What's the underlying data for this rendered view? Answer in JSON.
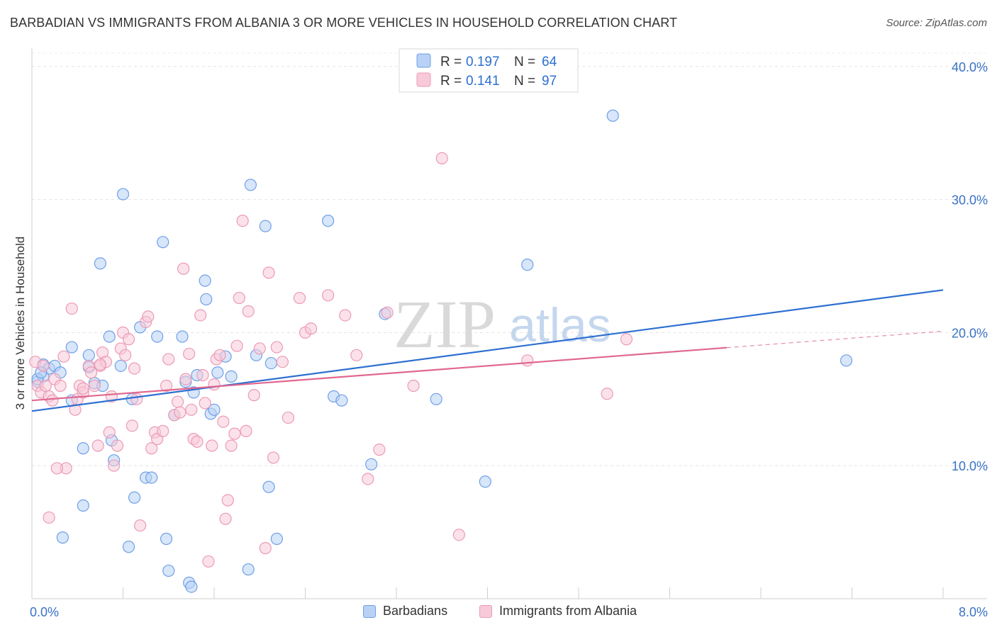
{
  "title": "BARBADIAN VS IMMIGRANTS FROM ALBANIA 3 OR MORE VEHICLES IN HOUSEHOLD CORRELATION CHART",
  "source": "Source: ZipAtlas.com",
  "watermark": {
    "zip": "ZIP",
    "atlas": "atlas"
  },
  "chart_data": {
    "type": "scatter",
    "ylabel": "3 or more Vehicles in Household",
    "xlim": [
      0,
      8
    ],
    "ylim": [
      0,
      41
    ],
    "x_tick_labels": [
      "0.0%",
      "8.0%"
    ],
    "y_ticks": [
      10,
      20,
      30,
      40
    ],
    "y_tick_labels": [
      "10.0%",
      "20.0%",
      "30.0%",
      "40.0%"
    ],
    "grid": true,
    "legend_top": {
      "rows": [
        {
          "r_label": "R =",
          "r_value": "0.197",
          "n_label": "N =",
          "n_value": "64"
        },
        {
          "r_label": "R =",
          "r_value": "0.141",
          "n_label": "N =",
          "n_value": "97"
        }
      ]
    },
    "series": [
      {
        "name": "Barbadians",
        "color": "#6fa0e6",
        "fill": "#b8d1f5",
        "line_color": "#2d6fd1",
        "trend": {
          "x0": 0,
          "y0": 14.1,
          "x1": 8,
          "y1": 23.2,
          "solid_until": 8
        },
        "points": [
          [
            0.05,
            16.3
          ],
          [
            0.1,
            17.6
          ],
          [
            0.1,
            16.7
          ],
          [
            0.15,
            17.3
          ],
          [
            0.2,
            17.5
          ],
          [
            0.25,
            17.0
          ],
          [
            0.35,
            14.9
          ],
          [
            0.35,
            18.9
          ],
          [
            0.45,
            11.3
          ],
          [
            0.45,
            7.0
          ],
          [
            0.5,
            18.3
          ],
          [
            0.5,
            17.4
          ],
          [
            0.55,
            16.2
          ],
          [
            0.6,
            25.2
          ],
          [
            0.62,
            16.0
          ],
          [
            0.68,
            19.7
          ],
          [
            0.7,
            11.9
          ],
          [
            0.72,
            10.4
          ],
          [
            0.78,
            17.5
          ],
          [
            0.8,
            30.4
          ],
          [
            0.85,
            3.9
          ],
          [
            0.88,
            15.0
          ],
          [
            0.9,
            7.6
          ],
          [
            0.95,
            20.4
          ],
          [
            1.0,
            9.1
          ],
          [
            1.05,
            9.1
          ],
          [
            1.1,
            19.7
          ],
          [
            1.15,
            26.8
          ],
          [
            1.18,
            4.5
          ],
          [
            1.2,
            2.1
          ],
          [
            1.25,
            13.8
          ],
          [
            1.32,
            19.7
          ],
          [
            1.35,
            16.3
          ],
          [
            1.38,
            1.2
          ],
          [
            1.4,
            0.9
          ],
          [
            1.42,
            15.5
          ],
          [
            1.45,
            16.8
          ],
          [
            1.52,
            23.9
          ],
          [
            1.53,
            22.5
          ],
          [
            1.57,
            13.9
          ],
          [
            1.6,
            14.2
          ],
          [
            1.63,
            17.0
          ],
          [
            1.7,
            18.2
          ],
          [
            1.75,
            16.7
          ],
          [
            1.9,
            2.2
          ],
          [
            1.92,
            31.1
          ],
          [
            1.97,
            18.3
          ],
          [
            2.05,
            28.0
          ],
          [
            2.08,
            8.4
          ],
          [
            2.1,
            17.7
          ],
          [
            2.15,
            4.5
          ],
          [
            2.6,
            28.4
          ],
          [
            2.65,
            15.2
          ],
          [
            2.72,
            14.9
          ],
          [
            2.98,
            10.1
          ],
          [
            3.1,
            21.4
          ],
          [
            3.55,
            15.0
          ],
          [
            3.98,
            8.8
          ],
          [
            4.35,
            25.1
          ],
          [
            5.1,
            36.3
          ],
          [
            7.15,
            17.9
          ],
          [
            0.27,
            4.6
          ],
          [
            0.05,
            16.5
          ],
          [
            0.08,
            17.0
          ]
        ]
      },
      {
        "name": "Immigrants from Albania",
        "color": "#ec9ab5",
        "fill": "#f8cad9",
        "line_color": "#e0688f",
        "trend": {
          "x0": 0,
          "y0": 14.9,
          "x1": 8,
          "y1": 20.1,
          "solid_until": 6.1
        },
        "points": [
          [
            0.03,
            17.8
          ],
          [
            0.05,
            16.0
          ],
          [
            0.08,
            15.5
          ],
          [
            0.1,
            17.5
          ],
          [
            0.12,
            16.0
          ],
          [
            0.15,
            15.2
          ],
          [
            0.18,
            14.9
          ],
          [
            0.2,
            16.5
          ],
          [
            0.25,
            16.0
          ],
          [
            0.28,
            18.2
          ],
          [
            0.3,
            9.8
          ],
          [
            0.35,
            21.8
          ],
          [
            0.38,
            14.2
          ],
          [
            0.4,
            15.0
          ],
          [
            0.42,
            16.0
          ],
          [
            0.45,
            15.5
          ],
          [
            0.5,
            17.5
          ],
          [
            0.52,
            17.0
          ],
          [
            0.55,
            16.0
          ],
          [
            0.58,
            11.5
          ],
          [
            0.6,
            17.5
          ],
          [
            0.62,
            18.5
          ],
          [
            0.65,
            17.8
          ],
          [
            0.68,
            12.5
          ],
          [
            0.7,
            15.2
          ],
          [
            0.72,
            10.0
          ],
          [
            0.75,
            11.5
          ],
          [
            0.78,
            18.8
          ],
          [
            0.8,
            20.0
          ],
          [
            0.82,
            18.3
          ],
          [
            0.85,
            19.5
          ],
          [
            0.88,
            13.0
          ],
          [
            0.9,
            17.3
          ],
          [
            0.92,
            15.0
          ],
          [
            0.95,
            5.5
          ],
          [
            1.0,
            20.8
          ],
          [
            1.02,
            21.2
          ],
          [
            1.05,
            11.3
          ],
          [
            1.08,
            12.5
          ],
          [
            1.1,
            12.0
          ],
          [
            1.15,
            12.6
          ],
          [
            1.18,
            16.0
          ],
          [
            1.2,
            18.0
          ],
          [
            1.25,
            13.8
          ],
          [
            1.28,
            14.8
          ],
          [
            1.3,
            14.0
          ],
          [
            1.33,
            24.8
          ],
          [
            1.35,
            16.5
          ],
          [
            1.38,
            18.4
          ],
          [
            1.4,
            14.2
          ],
          [
            1.42,
            12.0
          ],
          [
            1.45,
            11.8
          ],
          [
            1.48,
            21.3
          ],
          [
            1.5,
            16.8
          ],
          [
            1.52,
            14.7
          ],
          [
            1.55,
            2.8
          ],
          [
            1.58,
            11.5
          ],
          [
            1.6,
            16.1
          ],
          [
            1.62,
            18.0
          ],
          [
            1.65,
            18.3
          ],
          [
            1.68,
            13.3
          ],
          [
            1.7,
            6.0
          ],
          [
            1.72,
            7.4
          ],
          [
            1.75,
            11.5
          ],
          [
            1.78,
            12.4
          ],
          [
            1.8,
            19.0
          ],
          [
            1.82,
            22.6
          ],
          [
            1.85,
            28.4
          ],
          [
            1.88,
            12.6
          ],
          [
            1.9,
            21.6
          ],
          [
            1.95,
            15.3
          ],
          [
            2.0,
            18.8
          ],
          [
            2.05,
            3.8
          ],
          [
            2.08,
            24.5
          ],
          [
            2.12,
            10.6
          ],
          [
            2.15,
            18.9
          ],
          [
            2.2,
            17.8
          ],
          [
            2.25,
            13.6
          ],
          [
            2.35,
            22.6
          ],
          [
            2.4,
            20.0
          ],
          [
            2.45,
            20.3
          ],
          [
            2.6,
            22.8
          ],
          [
            2.75,
            21.3
          ],
          [
            2.85,
            18.3
          ],
          [
            2.95,
            9.0
          ],
          [
            3.05,
            11.2
          ],
          [
            3.12,
            21.5
          ],
          [
            3.35,
            16.0
          ],
          [
            3.6,
            33.1
          ],
          [
            3.75,
            4.8
          ],
          [
            4.35,
            17.9
          ],
          [
            5.05,
            15.4
          ],
          [
            5.22,
            19.5
          ],
          [
            0.22,
            9.8
          ],
          [
            0.15,
            6.1
          ],
          [
            0.6,
            17.6
          ],
          [
            0.45,
            15.8
          ]
        ]
      }
    ]
  }
}
